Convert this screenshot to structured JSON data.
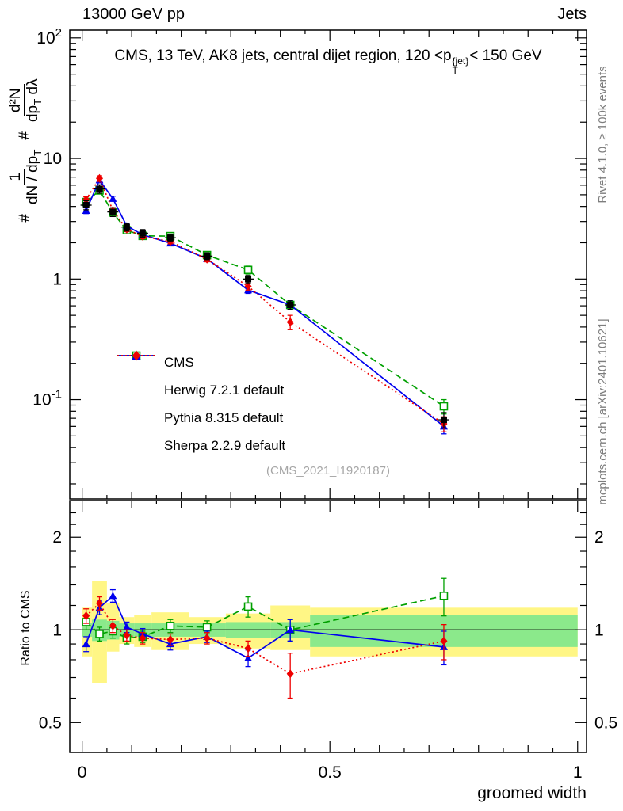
{
  "header": {
    "left": "13000 GeV pp",
    "right": "Jets"
  },
  "title": {
    "pre": "CMS, 13 TeV, AK8 jets, central dijet region, 120 <p",
    "sup": "{jet}",
    "sub": "T",
    "post": "< 150 GeV"
  },
  "watermark": "(CMS_2021_I1920187)",
  "side_notes": {
    "right_top": "Rivet 4.1.0, ≥ 100k events",
    "right_bottom": "mcplots.cern.ch [arXiv:2401.10621]"
  },
  "ylabel": {
    "sep1": "#",
    "sep2": "#",
    "f1num": "1",
    "f1den": "dN / dp",
    "f1den_sub": "T",
    "f2num": "d²N",
    "f2den": "dp",
    "f2den_sub": "T",
    "f2den_post": " dλ"
  },
  "ratio": {
    "label": "Ratio to CMS"
  },
  "xaxis": {
    "label": "groomed width"
  },
  "legend": {
    "items": [
      {
        "key": "cms",
        "label": "CMS"
      },
      {
        "key": "herwig",
        "label": "Herwig 7.2.1 default"
      },
      {
        "key": "pythia",
        "label": "Pythia 8.315 default"
      },
      {
        "key": "sherpa",
        "label": "Sherpa 2.2.9 default"
      }
    ]
  },
  "colors": {
    "cms": "#000000",
    "herwig": "#00a000",
    "pythia": "#0000ee",
    "sherpa": "#ee0000",
    "band_yellow": "#fff685",
    "band_green": "#8be98b",
    "gray_text": "#7d7d7d",
    "watermark": "#a6a6a6"
  },
  "chart_data": {
    "type": "line",
    "title": "CMS, 13 TeV, AK8 jets, central dijet region, 120 < pT{jet} < 150 GeV",
    "xlabel": "groomed width",
    "ylabel_ratio": "Ratio to CMS",
    "x": [
      0.008,
      0.035,
      0.062,
      0.09,
      0.122,
      0.178,
      0.252,
      0.335,
      0.42,
      0.73
    ],
    "bin_edges": [
      0.0,
      0.02,
      0.05,
      0.075,
      0.105,
      0.14,
      0.215,
      0.29,
      0.38,
      0.46,
      1.0
    ],
    "axes": {
      "x": {
        "min": -0.025,
        "max": 1.018,
        "minor_step": 0.05,
        "ticks": [
          {
            "v": 0,
            "label": "0"
          },
          {
            "v": 0.5,
            "label": "0.5"
          },
          {
            "v": 1,
            "label": "1"
          }
        ]
      },
      "ymain": {
        "scale": "log",
        "min": 0.015,
        "max": 116,
        "ticks": [
          {
            "v": 100,
            "base": "10",
            "exp": "2"
          },
          {
            "v": 10,
            "base": "10",
            "exp": ""
          },
          {
            "v": 1,
            "base": "1",
            "exp": ""
          },
          {
            "v": 0.1,
            "base": "10",
            "exp": "-1"
          }
        ]
      },
      "yratio": {
        "scale": "log",
        "min": 0.4,
        "max": 2.63,
        "ticks": [
          {
            "v": 2,
            "label": "2"
          },
          {
            "v": 1,
            "label": "1"
          },
          {
            "v": 0.5,
            "label": "0.5"
          }
        ],
        "minor": [
          0.6,
          0.7,
          0.8,
          0.9,
          1.2,
          1.4,
          1.6,
          1.8,
          2.2,
          2.4
        ]
      }
    },
    "series": [
      {
        "key": "cms",
        "name": "CMS",
        "marker": "square",
        "line": "none",
        "values": [
          4.1,
          5.6,
          3.6,
          2.7,
          2.4,
          2.2,
          1.55,
          1.0,
          0.61,
          0.068
        ],
        "yerr": [
          0.35,
          0.45,
          0.3,
          0.2,
          0.17,
          0.15,
          0.1,
          0.07,
          0.05,
          0.01
        ]
      },
      {
        "key": "herwig",
        "name": "Herwig 7.2.1 default",
        "marker": "open-square",
        "line": "dashed",
        "values": [
          4.35,
          5.43,
          3.56,
          2.54,
          2.28,
          2.27,
          1.58,
          1.19,
          0.61,
          0.088
        ],
        "yerr": [
          0.22,
          0.28,
          0.18,
          0.12,
          0.1,
          0.1,
          0.07,
          0.09,
          0.05,
          0.012
        ],
        "ratio": [
          1.06,
          0.97,
          0.99,
          0.94,
          0.95,
          1.03,
          1.02,
          1.19,
          1.0,
          1.29
        ],
        "ratio_err": [
          0.06,
          0.05,
          0.05,
          0.04,
          0.04,
          0.05,
          0.05,
          0.09,
          0.08,
          0.18
        ]
      },
      {
        "key": "pythia",
        "name": "Pythia 8.315 default",
        "marker": "triangle",
        "line": "solid",
        "values": [
          3.69,
          6.61,
          4.64,
          2.75,
          2.33,
          1.98,
          1.47,
          0.81,
          0.61,
          0.06
        ],
        "yerr": [
          0.2,
          0.32,
          0.22,
          0.12,
          0.1,
          0.09,
          0.07,
          0.05,
          0.05,
          0.008
        ],
        "ratio": [
          0.9,
          1.18,
          1.29,
          1.02,
          0.97,
          0.9,
          0.95,
          0.81,
          1.0,
          0.88
        ],
        "ratio_err": [
          0.05,
          0.06,
          0.06,
          0.04,
          0.04,
          0.04,
          0.04,
          0.05,
          0.08,
          0.11
        ]
      },
      {
        "key": "sherpa",
        "name": "Sherpa 2.2.9 default",
        "marker": "diamond",
        "line": "dotted",
        "values": [
          4.55,
          6.83,
          3.71,
          2.59,
          2.26,
          2.05,
          1.46,
          0.87,
          0.44,
          0.063
        ],
        "yerr": [
          0.25,
          0.34,
          0.19,
          0.12,
          0.1,
          0.09,
          0.07,
          0.06,
          0.06,
          0.009
        ],
        "ratio": [
          1.11,
          1.22,
          1.03,
          0.96,
          0.94,
          0.93,
          0.94,
          0.87,
          0.72,
          0.92
        ],
        "ratio_err": [
          0.06,
          0.06,
          0.05,
          0.04,
          0.04,
          0.04,
          0.04,
          0.05,
          0.12,
          0.12
        ]
      }
    ],
    "ratio_bands": {
      "yellow_lo": [
        0.82,
        0.67,
        0.85,
        0.9,
        0.88,
        0.86,
        0.9,
        0.87,
        0.86,
        0.82
      ],
      "yellow_hi": [
        1.18,
        1.44,
        1.22,
        1.1,
        1.12,
        1.14,
        1.1,
        1.13,
        1.2,
        1.18
      ],
      "green_lo": [
        0.95,
        0.92,
        0.93,
        0.95,
        0.95,
        0.95,
        0.95,
        0.94,
        0.94,
        0.88
      ],
      "green_hi": [
        1.05,
        1.08,
        1.07,
        1.05,
        1.05,
        1.05,
        1.05,
        1.06,
        1.06,
        1.12
      ]
    },
    "reference_line": 1.0
  }
}
